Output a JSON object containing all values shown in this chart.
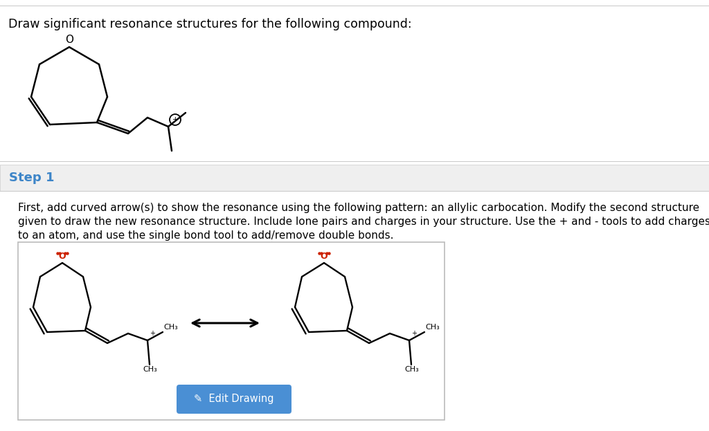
{
  "white": "#ffffff",
  "black": "#000000",
  "red_o": "#cc2200",
  "blue_step": "#3d85c8",
  "blue_btn": "#4a8fd4",
  "gray_line": "#cccccc",
  "gray_step_bg": "#efefef",
  "title_text": "Draw significant resonance structures for the following compound:",
  "step_label": "Step 1",
  "body_line1": "First, add curved arrow(s) to show the resonance using the following pattern: an allylic carbocation. Modify the second structure",
  "body_line2": "given to draw the new resonance structure. Include lone pairs and charges in your structure. Use the + and - tools to add charges",
  "body_line3": "to an atom, and use the single bond tool to add/remove double bonds.",
  "btn_text": "✓  Edit Drawing"
}
